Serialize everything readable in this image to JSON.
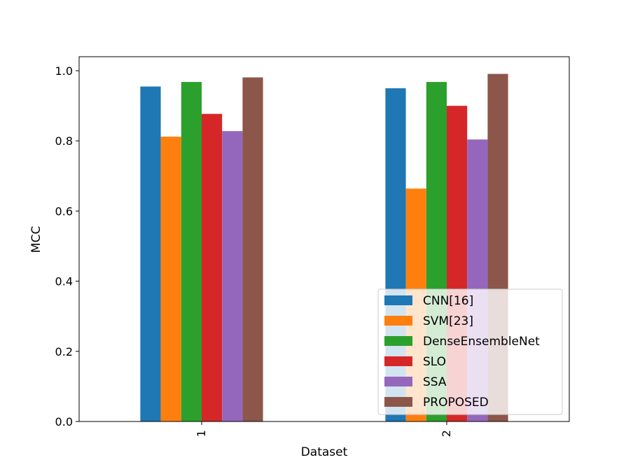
{
  "chart_data": {
    "type": "bar",
    "title": "",
    "xlabel": "Dataset",
    "ylabel": "MCC",
    "categories": [
      "1",
      "2"
    ],
    "ylim": [
      0,
      1.04
    ],
    "yticks": [
      "0.0",
      "0.2",
      "0.4",
      "0.6",
      "0.8",
      "1.0"
    ],
    "grid": false,
    "legend_position": "lower-right",
    "series": [
      {
        "name": "CNN[16]",
        "color": "#1f77b4",
        "values": [
          0.955,
          0.95
        ]
      },
      {
        "name": "SVM[23]",
        "color": "#ff7f0e",
        "values": [
          0.812,
          0.664
        ]
      },
      {
        "name": "DenseEnsembleNet",
        "color": "#2ca02c",
        "values": [
          0.968,
          0.968
        ]
      },
      {
        "name": "SLO",
        "color": "#d62728",
        "values": [
          0.877,
          0.9
        ]
      },
      {
        "name": "SSA",
        "color": "#9467bd",
        "values": [
          0.828,
          0.804
        ]
      },
      {
        "name": "PROPOSED",
        "color": "#8c564b",
        "values": [
          0.981,
          0.991
        ]
      }
    ]
  }
}
